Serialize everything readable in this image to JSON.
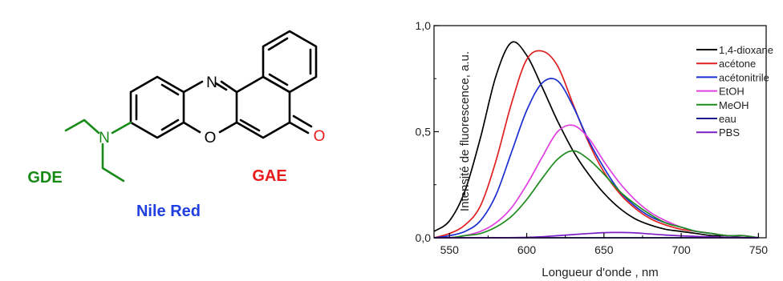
{
  "molecule": {
    "name": "Nile Red",
    "name_color": "#1f3fe0",
    "donor_label": "GDE",
    "donor_color": "#188a18",
    "acceptor_label": "GAE",
    "acceptor_color": "#ea1b1b",
    "atoms": {
      "nitrogen_amine": "N",
      "nitrogen_ring": "N",
      "oxygen_ring": "O",
      "oxygen_carbonyl": "O"
    }
  },
  "chart_data": {
    "type": "line",
    "xlabel": "Longueur d'onde , nm",
    "ylabel": "Intensité de fluorescence, a.u.",
    "xlim": [
      540,
      755
    ],
    "ylim": [
      0,
      1.0
    ],
    "x_ticks": [
      550,
      600,
      650,
      700,
      750
    ],
    "x_tick_labels": [
      "550",
      "600",
      "650",
      "700",
      "750"
    ],
    "y_ticks": [
      0,
      0.5,
      1.0
    ],
    "y_tick_labels": [
      "0,0",
      "0,5",
      "1,0"
    ],
    "legend_position": "right",
    "series": [
      {
        "name": "1,4-dioxane",
        "color": "#000000",
        "x": [
          540,
          550,
          560,
          570,
          580,
          590,
          600,
          610,
          620,
          630,
          640,
          650,
          660,
          670,
          680,
          690,
          700,
          710,
          720,
          730,
          740,
          750
        ],
        "y": [
          0.03,
          0.08,
          0.22,
          0.47,
          0.76,
          0.92,
          0.86,
          0.71,
          0.55,
          0.41,
          0.3,
          0.21,
          0.14,
          0.09,
          0.06,
          0.04,
          0.03,
          0.02,
          0.01,
          0.01,
          0.0,
          0.0
        ]
      },
      {
        "name": "acétone",
        "color": "#e02020",
        "x": [
          540,
          550,
          560,
          570,
          580,
          590,
          600,
          610,
          620,
          630,
          640,
          650,
          660,
          670,
          680,
          690,
          700,
          710,
          720,
          730,
          740,
          750
        ],
        "y": [
          0.0,
          0.02,
          0.06,
          0.15,
          0.36,
          0.63,
          0.84,
          0.88,
          0.81,
          0.63,
          0.45,
          0.31,
          0.21,
          0.14,
          0.09,
          0.06,
          0.04,
          0.03,
          0.02,
          0.01,
          0.01,
          0.0
        ]
      },
      {
        "name": "acétonitrile",
        "color": "#1a2fd0",
        "x": [
          540,
          550,
          560,
          570,
          580,
          590,
          600,
          610,
          620,
          630,
          640,
          650,
          660,
          670,
          680,
          690,
          700,
          710,
          720,
          730,
          740,
          750
        ],
        "y": [
          0.0,
          0.01,
          0.03,
          0.08,
          0.2,
          0.4,
          0.6,
          0.73,
          0.74,
          0.62,
          0.46,
          0.33,
          0.22,
          0.15,
          0.1,
          0.07,
          0.05,
          0.03,
          0.02,
          0.01,
          0.01,
          0.0
        ]
      },
      {
        "name": "EtOH",
        "color": "#e040e0",
        "x": [
          540,
          550,
          560,
          570,
          580,
          590,
          600,
          610,
          620,
          630,
          640,
          650,
          660,
          670,
          680,
          690,
          700,
          710,
          720,
          730,
          740,
          750
        ],
        "y": [
          0.0,
          0.0,
          0.01,
          0.03,
          0.07,
          0.14,
          0.25,
          0.38,
          0.5,
          0.53,
          0.47,
          0.36,
          0.26,
          0.18,
          0.12,
          0.08,
          0.05,
          0.03,
          0.02,
          0.01,
          0.01,
          0.0
        ]
      },
      {
        "name": "MeOH",
        "color": "#1e8c1e",
        "x": [
          540,
          550,
          560,
          570,
          580,
          590,
          600,
          610,
          620,
          630,
          640,
          650,
          660,
          670,
          680,
          690,
          700,
          710,
          720,
          730,
          740,
          750
        ],
        "y": [
          0.0,
          0.0,
          0.01,
          0.02,
          0.05,
          0.1,
          0.18,
          0.28,
          0.37,
          0.41,
          0.37,
          0.3,
          0.22,
          0.16,
          0.11,
          0.07,
          0.05,
          0.03,
          0.02,
          0.01,
          0.01,
          0.0
        ]
      },
      {
        "name": "eau",
        "color": "#1a1a8c",
        "x": [
          540,
          560,
          580,
          600,
          620,
          640,
          660,
          680,
          700,
          720,
          740,
          750
        ],
        "y": [
          0.0,
          0.0,
          0.0,
          0.0,
          0.0,
          0.0,
          0.0,
          0.0,
          0.0,
          0.0,
          0.0,
          0.0
        ]
      },
      {
        "name": "PBS",
        "color": "#7a1fc8",
        "x": [
          540,
          560,
          580,
          600,
          610,
          620,
          630,
          640,
          650,
          660,
          670,
          680,
          690,
          700,
          720,
          740,
          750
        ],
        "y": [
          0.0,
          0.0,
          0.0,
          0.002,
          0.005,
          0.01,
          0.015,
          0.02,
          0.024,
          0.025,
          0.023,
          0.018,
          0.013,
          0.009,
          0.004,
          0.001,
          0.0
        ]
      }
    ]
  }
}
